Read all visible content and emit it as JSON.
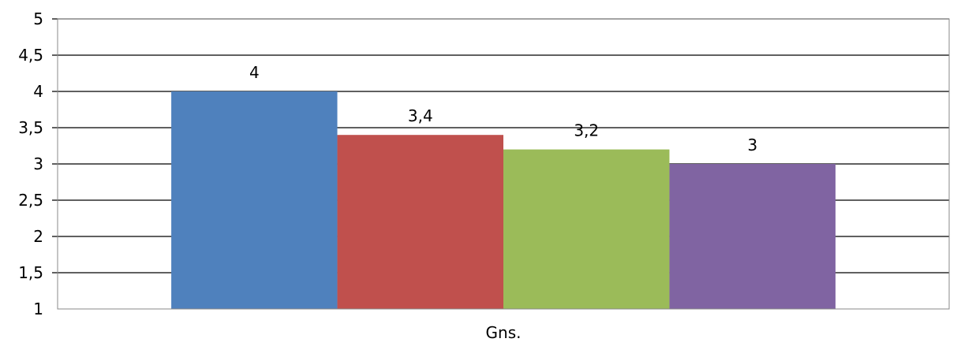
{
  "chart_data": {
    "type": "bar",
    "title": "",
    "xlabel": "",
    "ylabel": "",
    "categories": [
      "Gns."
    ],
    "series": [
      {
        "values": [
          4
        ],
        "color": "#4F81BD"
      },
      {
        "values": [
          3.4
        ],
        "color": "#C0504D"
      },
      {
        "values": [
          3.2
        ],
        "color": "#9BBB59"
      },
      {
        "values": [
          3
        ],
        "color": "#8064A2"
      }
    ],
    "data_labels": [
      "4",
      "3,4",
      "3,2",
      "3"
    ],
    "ylim": [
      1,
      5
    ],
    "yticks": [
      1,
      1.5,
      2,
      2.5,
      3,
      3.5,
      4,
      4.5,
      5
    ],
    "ytick_labels": [
      "1",
      "1,5",
      "2",
      "2,5",
      "3",
      "3,5",
      "4",
      "4,5",
      "5"
    ],
    "grid": true,
    "legend": "none"
  }
}
